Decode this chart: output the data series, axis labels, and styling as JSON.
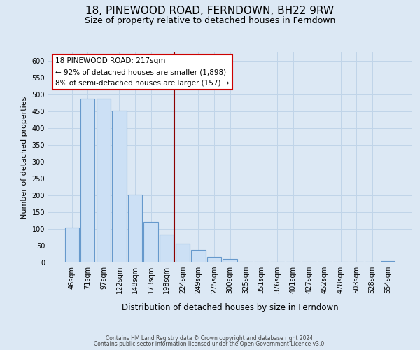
{
  "title": "18, PINEWOOD ROAD, FERNDOWN, BH22 9RW",
  "subtitle": "Size of property relative to detached houses in Ferndown",
  "xlabel": "Distribution of detached houses by size in Ferndown",
  "ylabel": "Number of detached properties",
  "bar_values": [
    105,
    488,
    488,
    452,
    202,
    121,
    83,
    56,
    37,
    16,
    10,
    2,
    2,
    2,
    2,
    2,
    2,
    2,
    2,
    2,
    5
  ],
  "bar_labels": [
    "46sqm",
    "71sqm",
    "97sqm",
    "122sqm",
    "148sqm",
    "173sqm",
    "198sqm",
    "224sqm",
    "249sqm",
    "275sqm",
    "300sqm",
    "325sqm",
    "351sqm",
    "376sqm",
    "401sqm",
    "427sqm",
    "452sqm",
    "478sqm",
    "503sqm",
    "528sqm",
    "554sqm"
  ],
  "bar_color": "#cce0f5",
  "bar_edgecolor": "#6699cc",
  "grid_color": "#c0d4e8",
  "background_color": "#dce8f4",
  "vline_index": 7,
  "vline_color": "#8b0000",
  "ylim_max": 625,
  "yticks": [
    0,
    50,
    100,
    150,
    200,
    250,
    300,
    350,
    400,
    450,
    500,
    550,
    600
  ],
  "annotation_title": "18 PINEWOOD ROAD: 217sqm",
  "annotation_line2": "← 92% of detached houses are smaller (1,898)",
  "annotation_line3": "8% of semi-detached houses are larger (157) →",
  "footer_line1": "Contains HM Land Registry data © Crown copyright and database right 2024.",
  "footer_line2": "Contains public sector information licensed under the Open Government Licence v3.0.",
  "title_fontsize": 11,
  "subtitle_fontsize": 9,
  "tick_fontsize": 7,
  "ylabel_fontsize": 8,
  "xlabel_fontsize": 8.5,
  "annot_fontsize": 7.5,
  "footer_fontsize": 5.5
}
